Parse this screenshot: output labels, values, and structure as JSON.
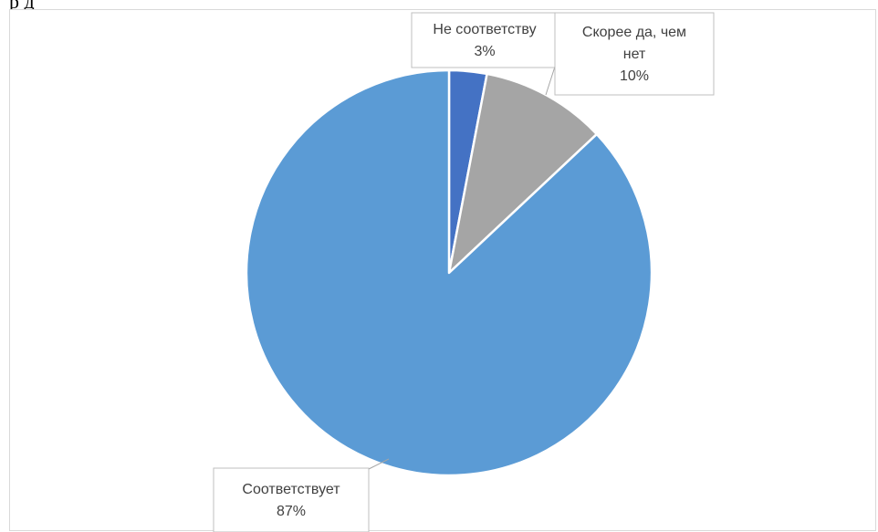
{
  "page": {
    "cut_text": "р                        д"
  },
  "chart_data": {
    "type": "pie",
    "title": "",
    "start_angle_deg": 0,
    "direction": "clockwise",
    "slices": [
      {
        "label": "Не соответству",
        "label_lines": [
          "Не соответству"
        ],
        "value": 3,
        "value_text": "3%",
        "color": "#4472c4"
      },
      {
        "label": "Скорее да, чем нет",
        "label_lines": [
          "Скорее да, чем",
          "нет"
        ],
        "value": 10,
        "value_text": "10%",
        "color": "#a5a5a5"
      },
      {
        "label": "Соответствует",
        "label_lines": [
          "Соответствует"
        ],
        "value": 87,
        "value_text": "87%",
        "color": "#5b9bd5"
      }
    ]
  }
}
